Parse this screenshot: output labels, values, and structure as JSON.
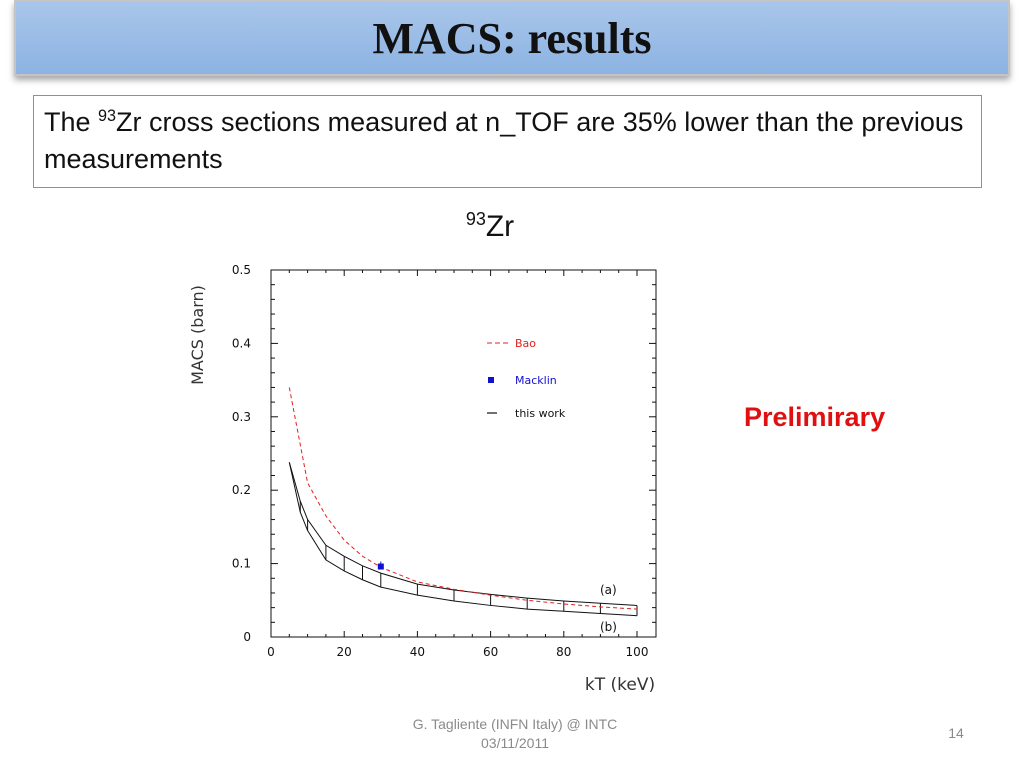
{
  "slide": {
    "title": "MACS: results",
    "bullet": {
      "prefix": "The ",
      "superscript": "93",
      "suffix": "Zr cross sections measured at n_TOF are 35% lower than the previous measurements"
    },
    "prelim_label": "Prelimirary",
    "footer": {
      "author_line1": "G. Tagliente (INFN Italy)  @ INTC",
      "author_line2": "03/11/2011",
      "page_number": "14"
    }
  },
  "chart_data": {
    "type": "line",
    "title_superscript": "93",
    "title_main": "Zr",
    "xlabel": "kT (keV)",
    "ylabel": "MACS (barn)",
    "xlim": [
      0,
      100
    ],
    "ylim": [
      0,
      0.5
    ],
    "xticks": [
      0,
      20,
      40,
      60,
      80,
      100
    ],
    "xtick_labels": [
      "0",
      "20",
      "40",
      "60",
      "80",
      "100"
    ],
    "yticks": [
      0,
      0.1,
      0.2,
      0.3,
      0.4,
      0.5
    ],
    "ytick_labels": [
      "0",
      "0.1",
      "0.2",
      "0.3",
      "0.4",
      "0.5"
    ],
    "grid": false,
    "legend_position": "top-right",
    "series": [
      {
        "name": "Bao",
        "style": "dashed",
        "color": "#e02020",
        "x": [
          5,
          10,
          15,
          20,
          25,
          30,
          40,
          50,
          60,
          70,
          80,
          90,
          100
        ],
        "y": [
          0.34,
          0.21,
          0.165,
          0.132,
          0.11,
          0.095,
          0.075,
          0.065,
          0.057,
          0.05,
          0.045,
          0.041,
          0.038
        ]
      },
      {
        "name": "Macklin",
        "style": "marker",
        "color": "#1010d0",
        "x": [
          30
        ],
        "y": [
          0.096
        ]
      },
      {
        "name": "this work",
        "style": "band",
        "color": "#111111",
        "x": [
          5,
          8,
          10,
          15,
          20,
          25,
          30,
          40,
          50,
          60,
          70,
          80,
          90,
          100
        ],
        "upper": [
          0.238,
          0.185,
          0.16,
          0.125,
          0.11,
          0.097,
          0.087,
          0.072,
          0.064,
          0.058,
          0.053,
          0.049,
          0.046,
          0.043
        ],
        "lower": [
          0.238,
          0.17,
          0.145,
          0.105,
          0.09,
          0.078,
          0.068,
          0.057,
          0.049,
          0.043,
          0.038,
          0.035,
          0.032,
          0.029
        ]
      }
    ],
    "annotations": [
      "(a)",
      "(b)"
    ]
  }
}
